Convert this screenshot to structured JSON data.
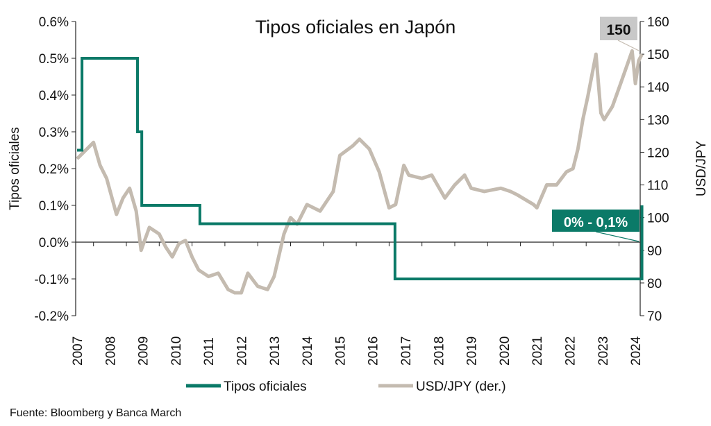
{
  "chart_data": {
    "type": "line",
    "title": "Tipos oficiales en Japón",
    "ylabel": "Tipos oficiales",
    "y2label": "USD/JPY",
    "ylim": [
      -0.2,
      0.6
    ],
    "y2lim": [
      70,
      160
    ],
    "xlim": [
      2007,
      2024.2
    ],
    "yticks": [
      "-0.2%",
      "-0.1%",
      "0.0%",
      "0.1%",
      "0.2%",
      "0.3%",
      "0.4%",
      "0.5%",
      "0.6%"
    ],
    "y2ticks": [
      "70",
      "80",
      "90",
      "100",
      "110",
      "120",
      "130",
      "140",
      "150",
      "160"
    ],
    "xticks": [
      "2007",
      "2008",
      "2009",
      "2010",
      "2011",
      "2012",
      "2013",
      "2014",
      "2015",
      "2016",
      "2017",
      "2018",
      "2019",
      "2020",
      "2021",
      "2022",
      "2023",
      "2024"
    ],
    "colors": {
      "policy": "#0b7a68",
      "usdjpy": "#c4bbb0"
    },
    "series": [
      {
        "name": "Tipos oficiales",
        "axis": "left",
        "step": true,
        "x": [
          2007.0,
          2007.15,
          2008.84,
          2008.97,
          2010.74,
          2016.68,
          2024.2
        ],
        "values": [
          0.25,
          0.5,
          0.3,
          0.1,
          0.05,
          -0.1,
          0.1
        ]
      },
      {
        "name": "USD/JPY (der.)",
        "axis": "right",
        "x": [
          2007.0,
          2007.2,
          2007.5,
          2007.7,
          2007.9,
          2008.2,
          2008.4,
          2008.6,
          2008.8,
          2008.95,
          2009.2,
          2009.5,
          2009.7,
          2009.9,
          2010.1,
          2010.3,
          2010.5,
          2010.7,
          2011.0,
          2011.3,
          2011.6,
          2011.8,
          2012.0,
          2012.2,
          2012.5,
          2012.8,
          2013.0,
          2013.3,
          2013.5,
          2013.7,
          2014.0,
          2014.4,
          2014.8,
          2015.0,
          2015.4,
          2015.6,
          2015.9,
          2016.2,
          2016.5,
          2016.7,
          2016.95,
          2017.1,
          2017.5,
          2017.8,
          2018.2,
          2018.5,
          2018.8,
          2019.0,
          2019.4,
          2019.9,
          2020.2,
          2020.4,
          2020.9,
          2021.0,
          2021.3,
          2021.6,
          2021.9,
          2022.1,
          2022.25,
          2022.4,
          2022.55,
          2022.8,
          2022.95,
          2023.05,
          2023.3,
          2023.55,
          2023.9,
          2024.0,
          2024.1,
          2024.2
        ],
        "values": [
          118,
          120,
          123,
          116,
          112,
          101,
          106,
          109,
          102,
          90,
          97,
          95,
          91,
          88,
          92,
          93,
          88,
          84,
          82,
          83,
          78,
          77,
          77,
          83,
          79,
          78,
          82,
          95,
          100,
          98,
          104,
          102,
          108,
          119,
          122,
          124,
          121,
          114,
          103,
          104,
          116,
          113,
          112,
          113,
          106,
          110,
          113,
          109,
          108,
          109,
          108,
          107,
          104,
          103,
          110,
          110,
          114,
          115,
          121,
          130,
          137,
          150,
          132,
          130,
          134,
          141,
          151,
          141,
          148,
          150
        ]
      }
    ],
    "annotations": [
      "150",
      "0% - 0,1%"
    ],
    "legend": {
      "position": "bottom",
      "entries": [
        "Tipos oficiales",
        "USD/JPY (der.)"
      ]
    },
    "source": "Fuente: Bloomberg y Banca March"
  }
}
